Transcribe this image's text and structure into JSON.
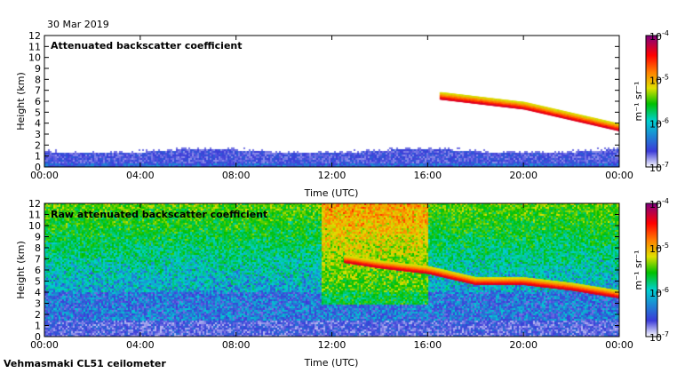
{
  "date_label": "30 Mar 2019",
  "instrument_label": "Vehmasmaki CL51 ceilometer",
  "colors": {
    "colormap": [
      "#ffffff",
      "#3b3bd8",
      "#00d0d0",
      "#00c000",
      "#e0e000",
      "#ff8000",
      "#ff0000",
      "#800080"
    ]
  },
  "chart_data": [
    {
      "type": "heatmap",
      "title": "Attenuated backscatter coefficient",
      "xlabel": "Time (UTC)",
      "ylabel": "Height (km)",
      "x_ticks": [
        "00:00",
        "04:00",
        "08:00",
        "12:00",
        "16:00",
        "20:00",
        "00:00"
      ],
      "xlim_hours": [
        0,
        24
      ],
      "y_ticks": [
        "0",
        "1",
        "2",
        "3",
        "4",
        "5",
        "6",
        "7",
        "8",
        "9",
        "10",
        "11",
        "12"
      ],
      "ylim": [
        0,
        12
      ],
      "colorbar": {
        "label": "m⁻¹ sr⁻¹",
        "scale": "log",
        "range": [
          1e-07,
          0.0001
        ],
        "tick_labels": [
          "10",
          "10",
          "10",
          "10"
        ],
        "tick_exponents": [
          "-4",
          "-5",
          "-6",
          "-7"
        ]
      },
      "features": {
        "boundary_layer_km": [
          0,
          1.5
        ],
        "cloud_layer": {
          "time_hours": [
            16.5,
            24
          ],
          "height_km_start": [
            6.5,
            5.5
          ],
          "height_km_end": [
            4.2,
            3.6
          ]
        }
      }
    },
    {
      "type": "heatmap",
      "title": "Raw attenuated backscatter coefficient",
      "xlabel": "Time (UTC)",
      "ylabel": "Height (km)",
      "x_ticks": [
        "00:00",
        "04:00",
        "08:00",
        "12:00",
        "16:00",
        "20:00",
        "00:00"
      ],
      "xlim_hours": [
        0,
        24
      ],
      "y_ticks": [
        "0",
        "1",
        "2",
        "3",
        "4",
        "5",
        "6",
        "7",
        "8",
        "9",
        "10",
        "11",
        "12"
      ],
      "ylim": [
        0,
        12
      ],
      "colorbar": {
        "label": "m⁻¹ sr⁻¹",
        "scale": "log",
        "range": [
          1e-07,
          0.0001
        ],
        "tick_labels": [
          "10",
          "10",
          "10",
          "10"
        ],
        "tick_exponents": [
          "-4",
          "-5",
          "-6",
          "-7"
        ]
      },
      "features": {
        "cloud_layer_line_km": [
          [
            12.5,
            7.0
          ],
          [
            14,
            6.5
          ],
          [
            16,
            6.0
          ],
          [
            18,
            5.0
          ],
          [
            20,
            5.0
          ],
          [
            22,
            4.5
          ],
          [
            24,
            3.8
          ]
        ],
        "noise_increase_above_km": 4.0,
        "solar_noise_hours": [
          11.5,
          16
        ]
      }
    }
  ]
}
